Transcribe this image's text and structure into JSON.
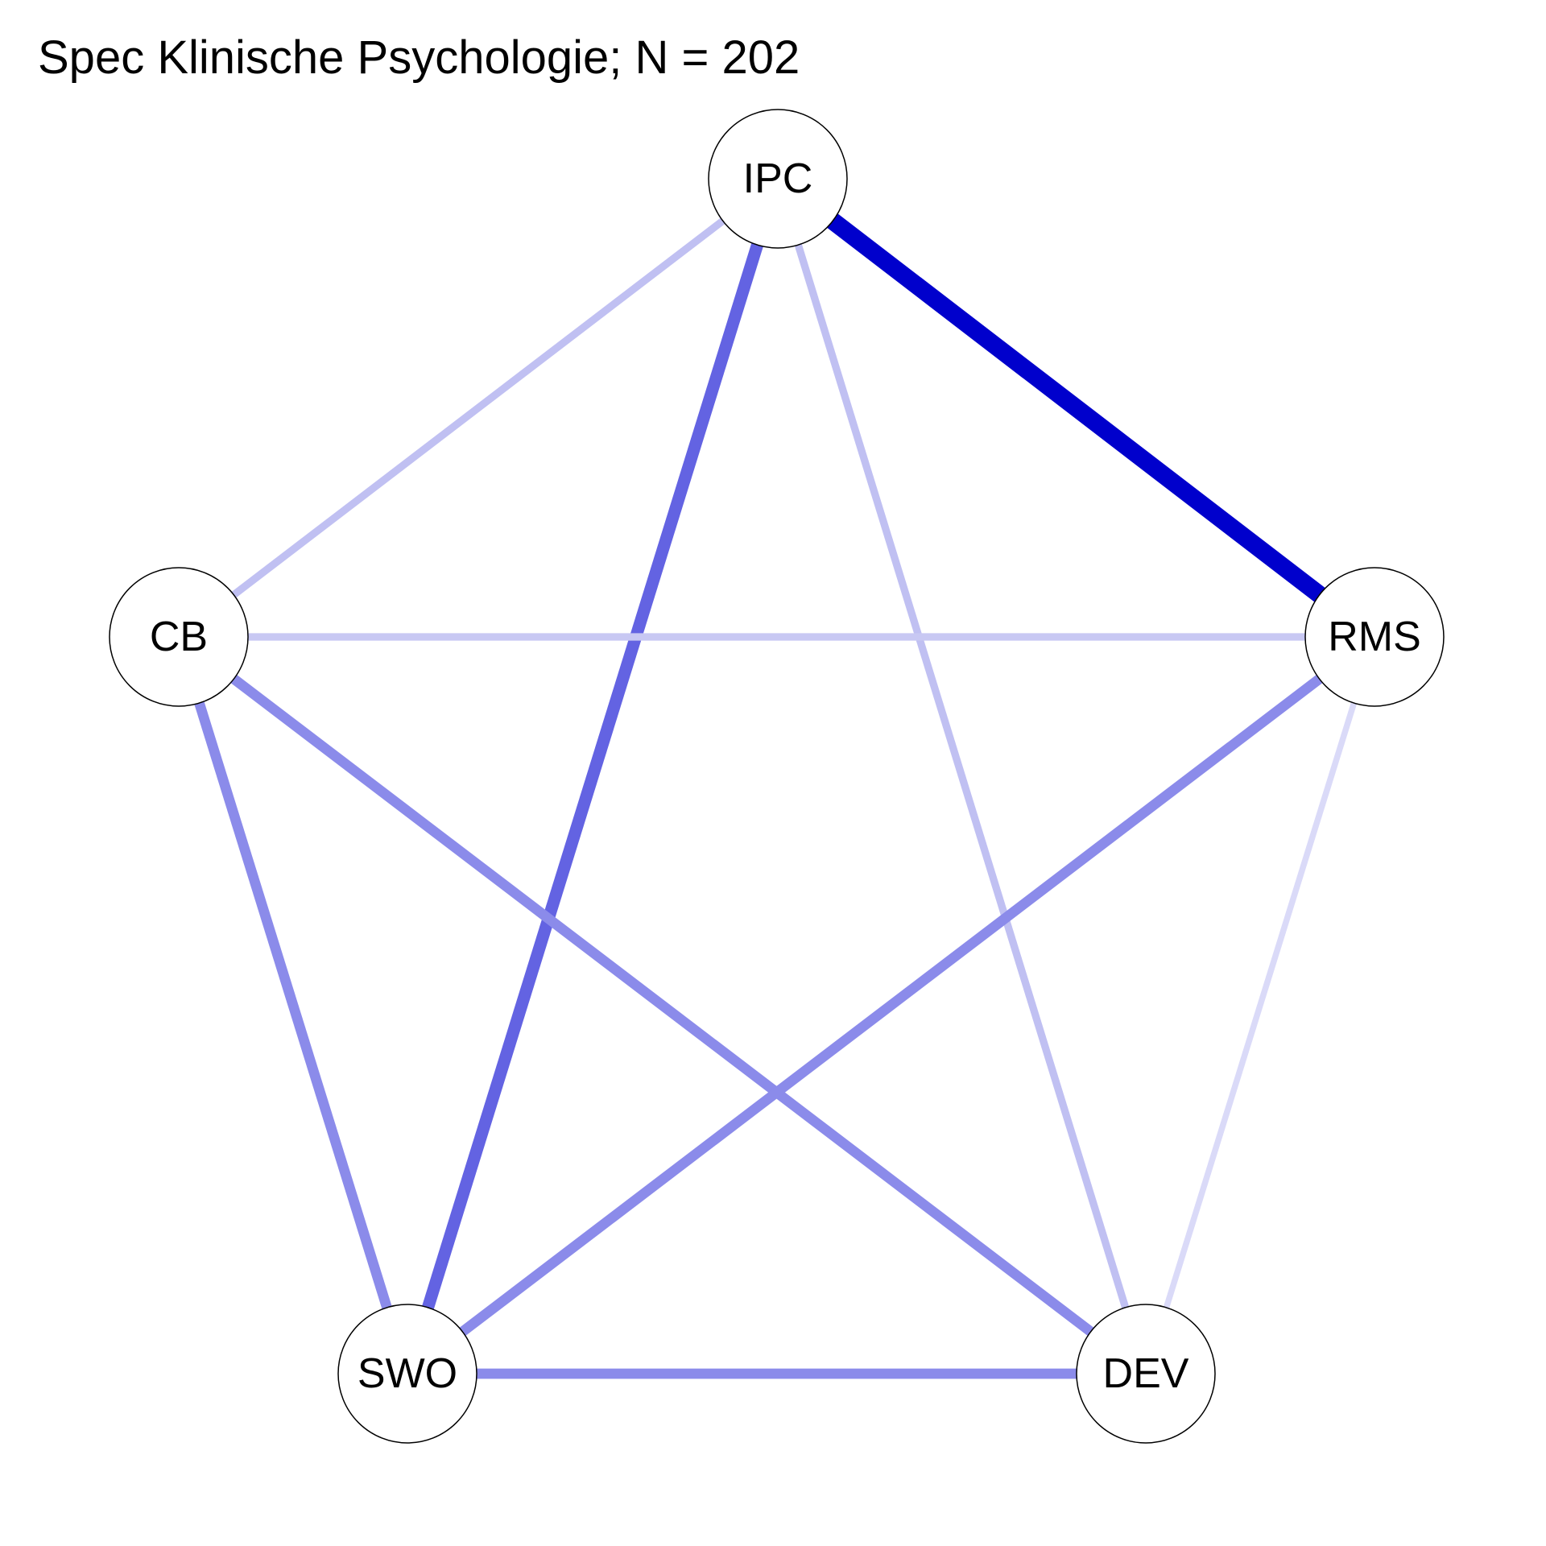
{
  "title": "Spec Klinische Psychologie; N = 202",
  "nodes": [
    {
      "id": "IPC",
      "label": "IPC"
    },
    {
      "id": "RMS",
      "label": "RMS"
    },
    {
      "id": "DEV",
      "label": "DEV"
    },
    {
      "id": "SWO",
      "label": "SWO"
    },
    {
      "id": "CB",
      "label": "CB"
    }
  ],
  "edges": [
    {
      "from": "IPC",
      "to": "RMS",
      "strength": 1.0,
      "color": "#0000cc"
    },
    {
      "from": "IPC",
      "to": "SWO",
      "strength": 0.6,
      "color": "#6363e2"
    },
    {
      "from": "IPC",
      "to": "CB",
      "strength": 0.25,
      "color": "#c0c0f2"
    },
    {
      "from": "IPC",
      "to": "DEV",
      "strength": 0.25,
      "color": "#c0c0f2"
    },
    {
      "from": "CB",
      "to": "RMS",
      "strength": 0.25,
      "color": "#c8c8f3"
    },
    {
      "from": "CB",
      "to": "SWO",
      "strength": 0.45,
      "color": "#8b8bea"
    },
    {
      "from": "CB",
      "to": "DEV",
      "strength": 0.45,
      "color": "#8b8bea"
    },
    {
      "from": "RMS",
      "to": "SWO",
      "strength": 0.45,
      "color": "#8b8bea"
    },
    {
      "from": "RMS",
      "to": "DEV",
      "strength": 0.15,
      "color": "#dadaf8"
    },
    {
      "from": "SWO",
      "to": "DEV",
      "strength": 0.45,
      "color": "#8b8bea"
    }
  ]
}
